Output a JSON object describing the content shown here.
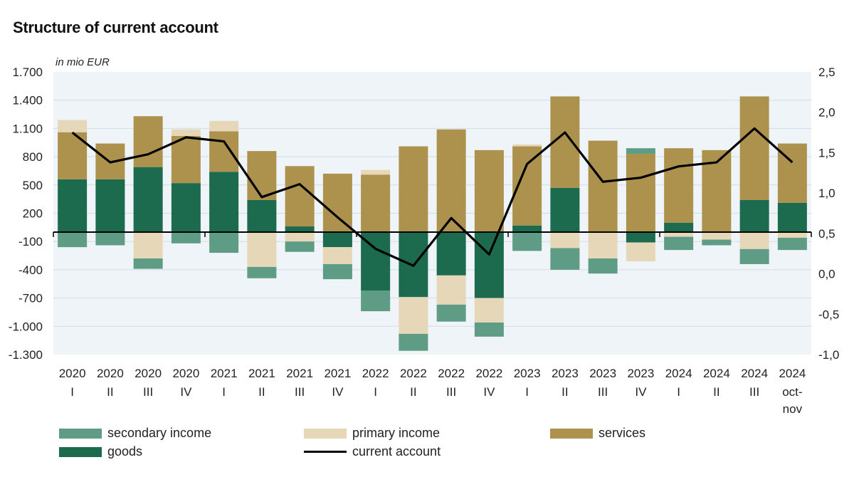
{
  "title": "Structure of current account",
  "unit": "in mio EUR",
  "colors": {
    "secondary_income": "#5e9c85",
    "primary_income": "#e6d7b9",
    "services": "#ad924e",
    "goods": "#1d6b4f",
    "current_account": "#000000",
    "plot_bg": "#eef4f7"
  },
  "chart_data": {
    "type": "bar",
    "stacked": true,
    "categories": [
      {
        "year": "2020",
        "period": "I"
      },
      {
        "year": "2020",
        "period": "II"
      },
      {
        "year": "2020",
        "period": "III"
      },
      {
        "year": "2020",
        "period": "IV"
      },
      {
        "year": "2021",
        "period": "I"
      },
      {
        "year": "2021",
        "period": "II"
      },
      {
        "year": "2021",
        "period": "III"
      },
      {
        "year": "2021",
        "period": "IV"
      },
      {
        "year": "2022",
        "period": "I"
      },
      {
        "year": "2022",
        "period": "II"
      },
      {
        "year": "2022",
        "period": "III"
      },
      {
        "year": "2022",
        "period": "IV"
      },
      {
        "year": "2023",
        "period": "I"
      },
      {
        "year": "2023",
        "period": "II"
      },
      {
        "year": "2023",
        "period": "III"
      },
      {
        "year": "2023",
        "period": "IV"
      },
      {
        "year": "2024",
        "period": "I"
      },
      {
        "year": "2024",
        "period": "II"
      },
      {
        "year": "2024",
        "period": "III"
      },
      {
        "year": "2024",
        "period": "oct-nov"
      }
    ],
    "series": [
      {
        "name": "goods",
        "key": "goods",
        "values": [
          560,
          560,
          690,
          520,
          640,
          340,
          60,
          -160,
          -620,
          -690,
          -460,
          -700,
          70,
          470,
          0,
          -110,
          100,
          0,
          340,
          310
        ]
      },
      {
        "name": "services",
        "key": "services",
        "values": [
          500,
          380,
          540,
          500,
          430,
          520,
          640,
          620,
          610,
          910,
          1090,
          870,
          840,
          970,
          970,
          830,
          790,
          870,
          1100,
          630
        ]
      },
      {
        "name": "primary income",
        "key": "primary_income",
        "values": [
          130,
          0,
          -280,
          70,
          110,
          -370,
          -100,
          -180,
          50,
          -390,
          -310,
          -260,
          20,
          -170,
          -280,
          -200,
          -50,
          -80,
          -180,
          -60
        ]
      },
      {
        "name": "secondary income",
        "key": "secondary_income",
        "values": [
          -160,
          -140,
          -110,
          -120,
          -220,
          -120,
          -110,
          -160,
          -220,
          -180,
          -180,
          -150,
          -200,
          -230,
          -160,
          60,
          -140,
          -60,
          -160,
          -130
        ]
      }
    ],
    "line": {
      "name": "current account",
      "key": "current_account",
      "values": [
        1.75,
        1.38,
        1.48,
        1.69,
        1.64,
        0.95,
        1.11,
        0.7,
        0.31,
        0.1,
        0.69,
        0.24,
        1.36,
        1.75,
        1.14,
        1.19,
        1.33,
        1.38,
        1.8,
        1.38
      ]
    },
    "y_left": {
      "ticks": [
        1700,
        1400,
        1100,
        800,
        500,
        200,
        -100,
        -400,
        -700,
        -1000,
        -1300
      ],
      "tick_labels": [
        "1.700",
        "1.400",
        "1.100",
        "800",
        "500",
        "200",
        "-100",
        "-400",
        "-700",
        "-1.000",
        "-1.300"
      ],
      "range": [
        -1300,
        1700
      ]
    },
    "y_right": {
      "ticks": [
        2.5,
        2.0,
        1.5,
        1.0,
        0.5,
        0.0,
        -0.5,
        -1.0
      ],
      "tick_labels": [
        "2,5",
        "2,0",
        "1,5",
        "1,0",
        "0,5",
        "0,0",
        "-0,5",
        "-1,0"
      ],
      "range": [
        -1.0,
        2.5
      ]
    },
    "grid": true,
    "legend_position": "bottom"
  },
  "legend": [
    {
      "label": "secondary income",
      "key": "secondary_income",
      "kind": "box"
    },
    {
      "label": "primary income",
      "key": "primary_income",
      "kind": "box"
    },
    {
      "label": "services",
      "key": "services",
      "kind": "box"
    },
    {
      "label": "goods",
      "key": "goods",
      "kind": "box"
    },
    {
      "label": "current account",
      "key": "current_account",
      "kind": "line"
    }
  ]
}
